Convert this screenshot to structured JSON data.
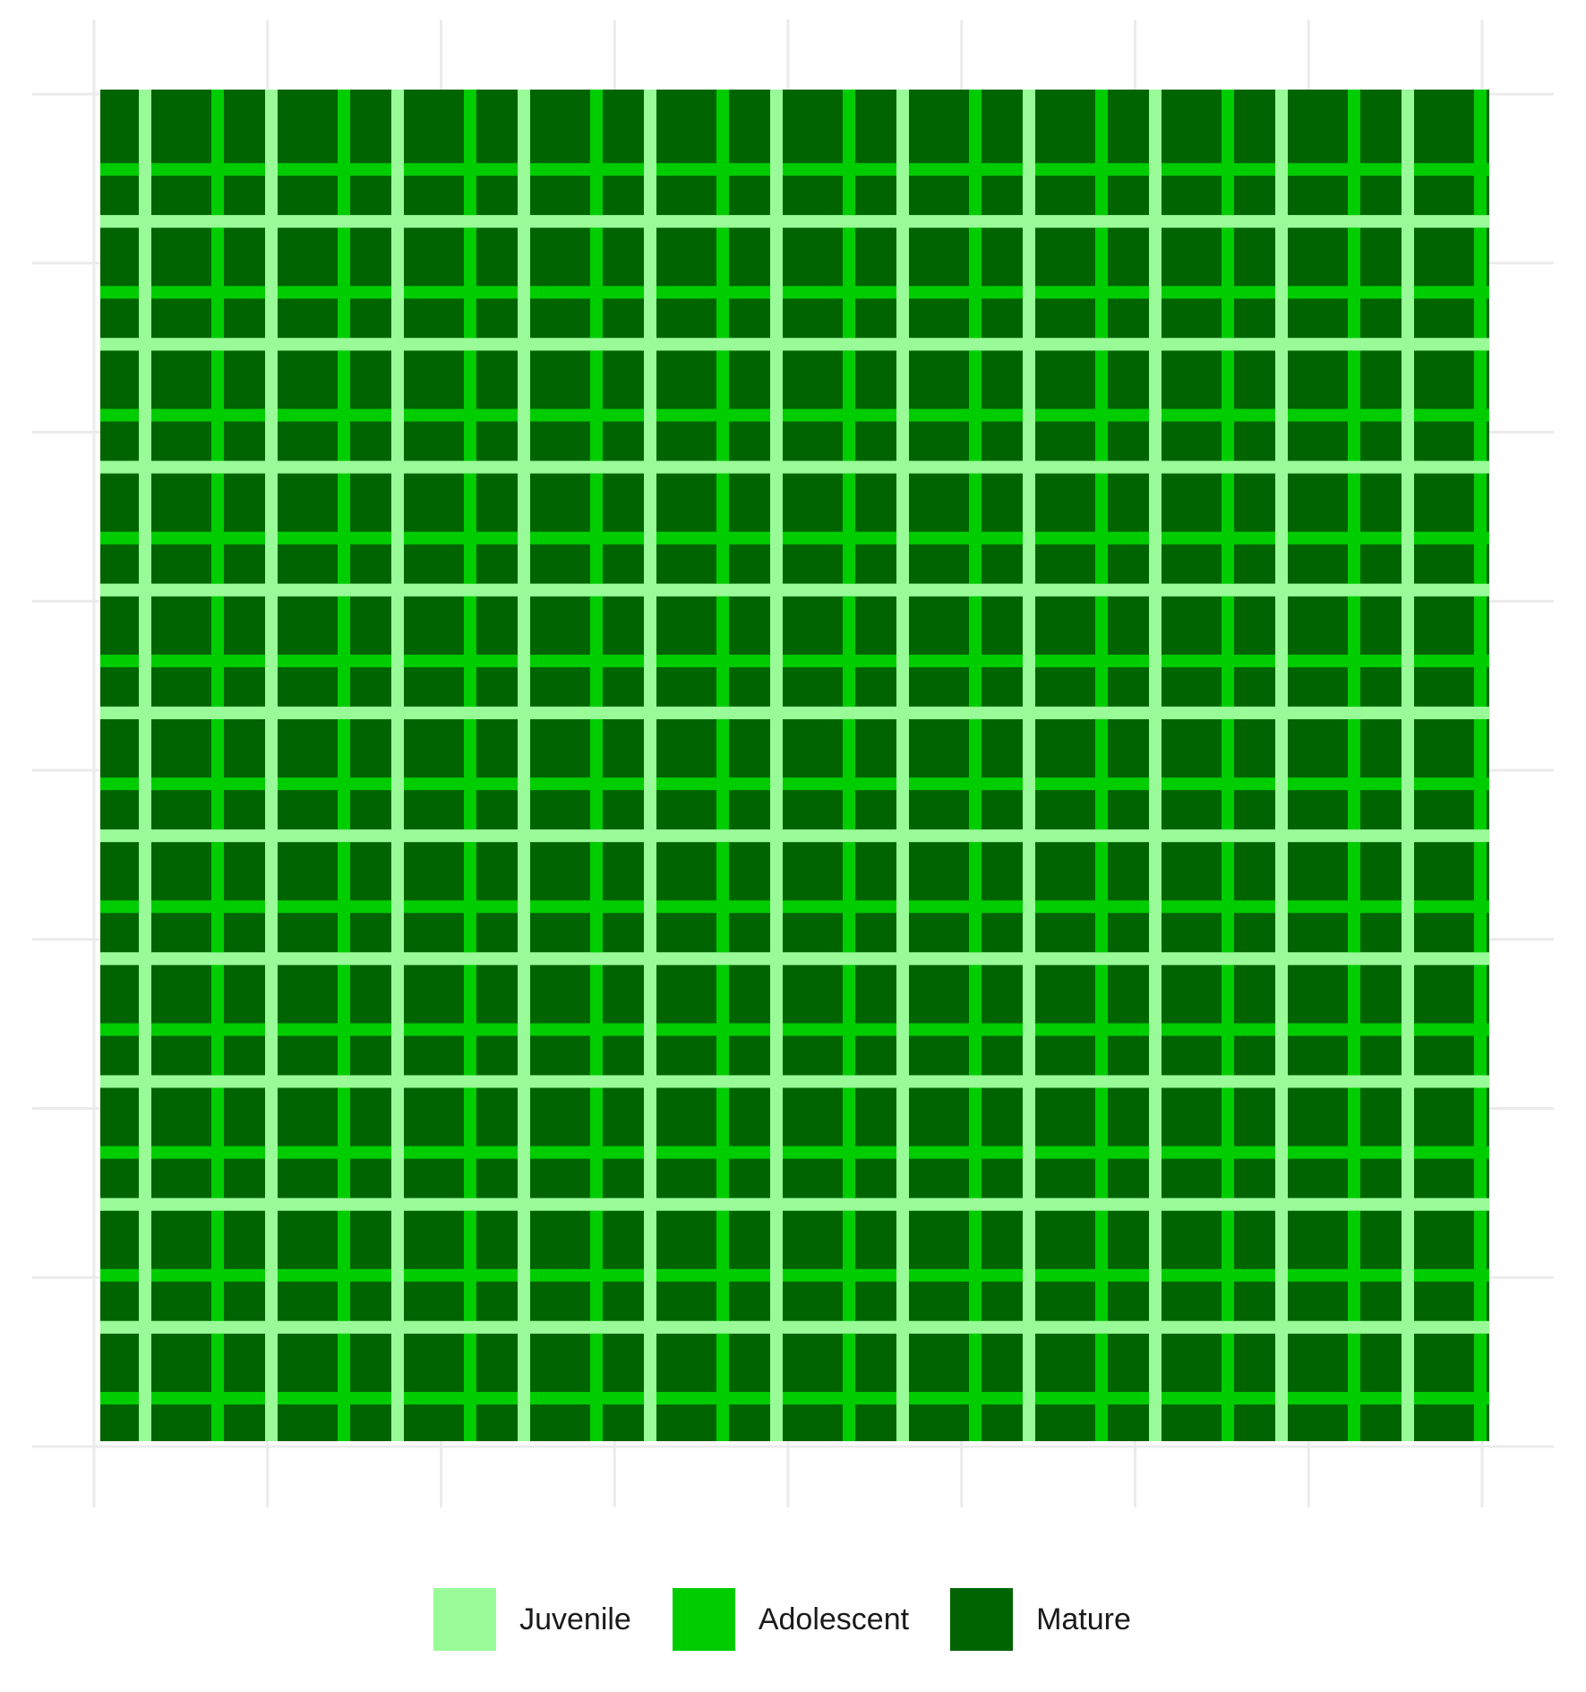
{
  "chart_data": {
    "type": "heatmap",
    "title": "",
    "xlabel": "",
    "ylabel": "",
    "grid": true,
    "legend_position": "bottom",
    "legend": [
      {
        "label": "Juvenile",
        "color": "#98fb98"
      },
      {
        "label": "Adolescent",
        "color": "#00cd00"
      },
      {
        "label": "Mature",
        "color": "#006400"
      }
    ],
    "background_color": "#ffffff",
    "gridline_color": "#ebebeb",
    "pattern": {
      "description_levels": [
        "Juvenile",
        "Adolescent",
        "Mature"
      ],
      "columns": 11,
      "rows": 11,
      "column_stripes": [
        "Juvenile",
        "Adolescent"
      ],
      "row_stripes": [
        "Adolescent",
        "Juvenile"
      ],
      "fill": "Mature"
    }
  }
}
